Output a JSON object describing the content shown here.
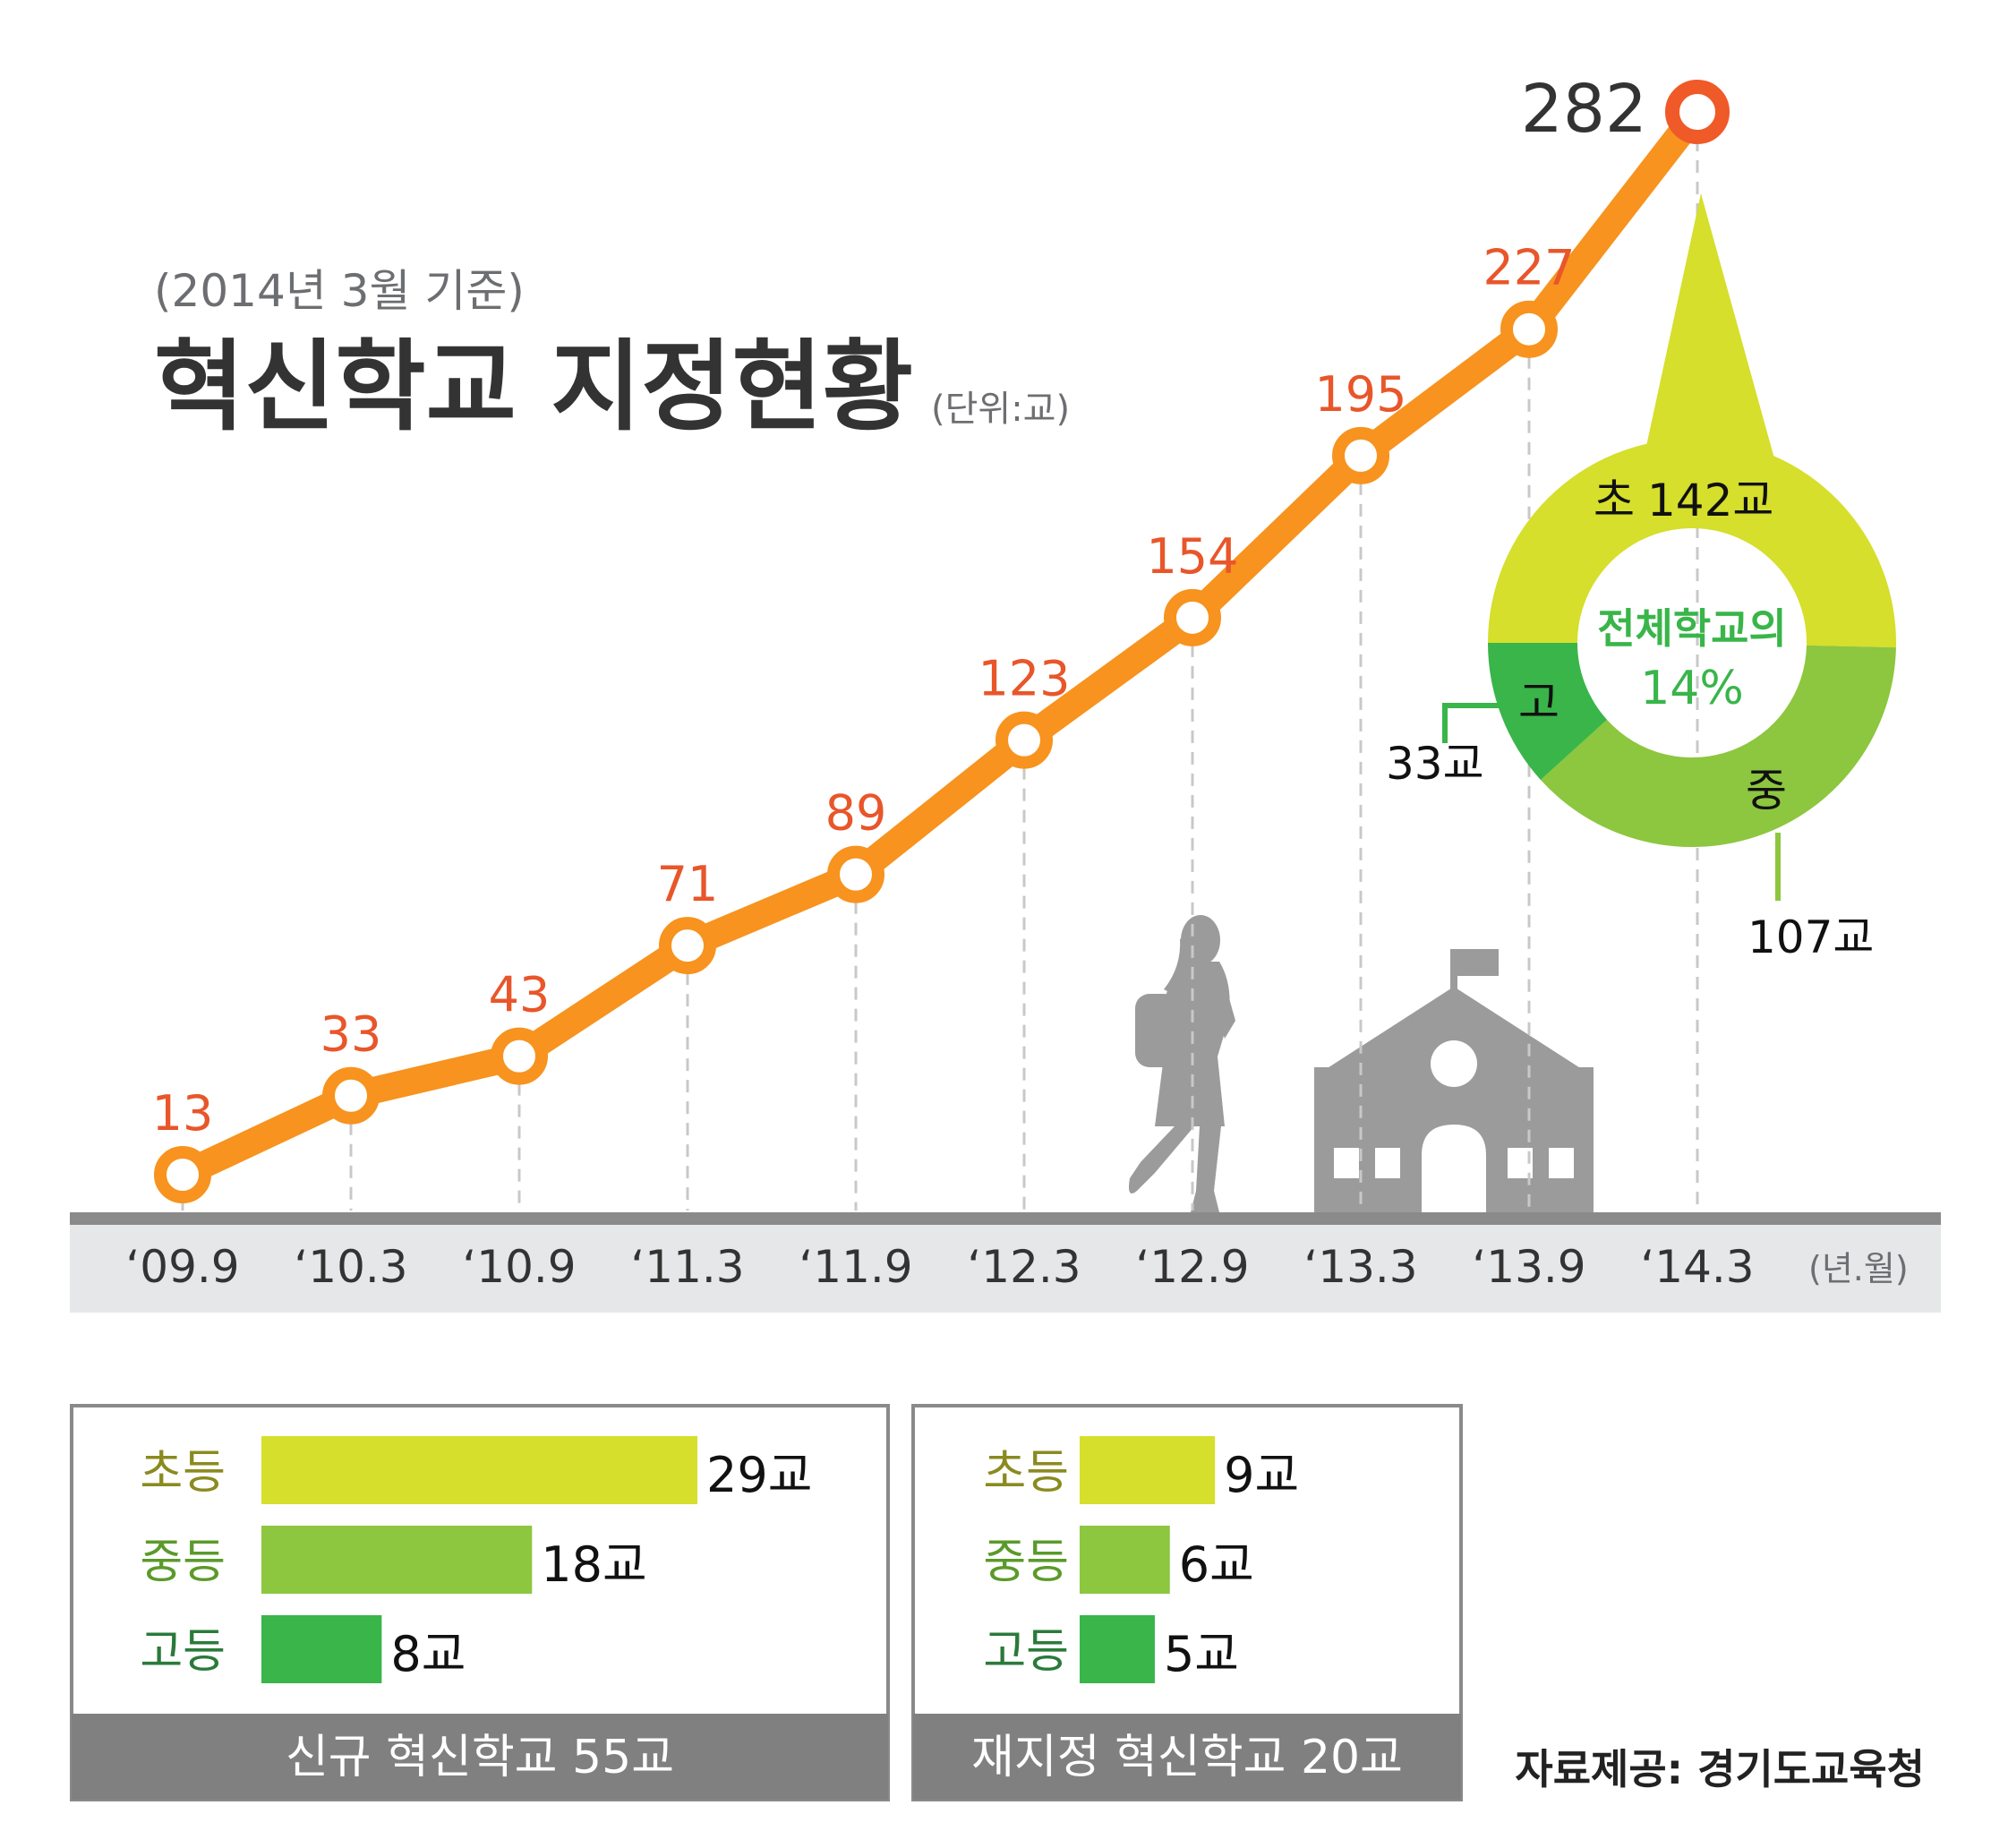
{
  "header": {
    "subtitle": "(2014년 3월 기준)",
    "title": "혁신학교 지정현황",
    "unit": "(단위:교)"
  },
  "chart_data": [
    {
      "type": "line",
      "title": "혁신학교 지정현황",
      "subtitle": "(2014년 3월 기준)",
      "unit": "(단위:교)",
      "categories": [
        "‘09.9",
        "‘10.3",
        "‘10.9",
        "‘11.3",
        "‘11.9",
        "‘12.3",
        "‘12.9",
        "‘13.3",
        "‘13.9",
        "‘14.3"
      ],
      "values": [
        13,
        33,
        43,
        71,
        89,
        123,
        154,
        195,
        227,
        282
      ],
      "x_axis_unit": "(년.월)",
      "ylim": [
        0,
        300
      ],
      "grid": false,
      "colors": {
        "line": "#f7931e",
        "label": "#e8562a",
        "last_marker": "#ef5a28",
        "axis_band": "#e6e7e8",
        "axis_line": "#8a8a8a"
      }
    },
    {
      "type": "pie",
      "donut": true,
      "center_label": "전체학교의",
      "center_value": "14%",
      "slices": [
        {
          "label": "초",
          "value": 142,
          "value_label": "142교",
          "color": "#d5df2c"
        },
        {
          "label": "중",
          "value": 107,
          "value_label": "107교",
          "color": "#8dc63f"
        },
        {
          "label": "고",
          "value": 33,
          "value_label": "33교",
          "color": "#39b54a"
        }
      ]
    },
    {
      "type": "bar",
      "orientation": "horizontal",
      "footer": "신규 혁신학교 55교",
      "categories": [
        "초등",
        "중등",
        "고등"
      ],
      "values": [
        29,
        18,
        8
      ],
      "value_labels": [
        "29교",
        "18교",
        "8교"
      ],
      "colors": [
        "#d5df2c",
        "#8dc63f",
        "#39b54a"
      ]
    },
    {
      "type": "bar",
      "orientation": "horizontal",
      "footer": "재지정 혁신학교 20교",
      "categories": [
        "초등",
        "중등",
        "고등"
      ],
      "values": [
        9,
        6,
        5
      ],
      "value_labels": [
        "9교",
        "6교",
        "5교"
      ],
      "colors": [
        "#d5df2c",
        "#8dc63f",
        "#39b54a"
      ]
    }
  ],
  "category_label_colors": [
    "#8a8a20",
    "#5a9a2a",
    "#2a7a3a"
  ],
  "source": "자료제공: 경기도교육청",
  "icons": [
    "student-silhouette-icon",
    "school-building-icon"
  ]
}
